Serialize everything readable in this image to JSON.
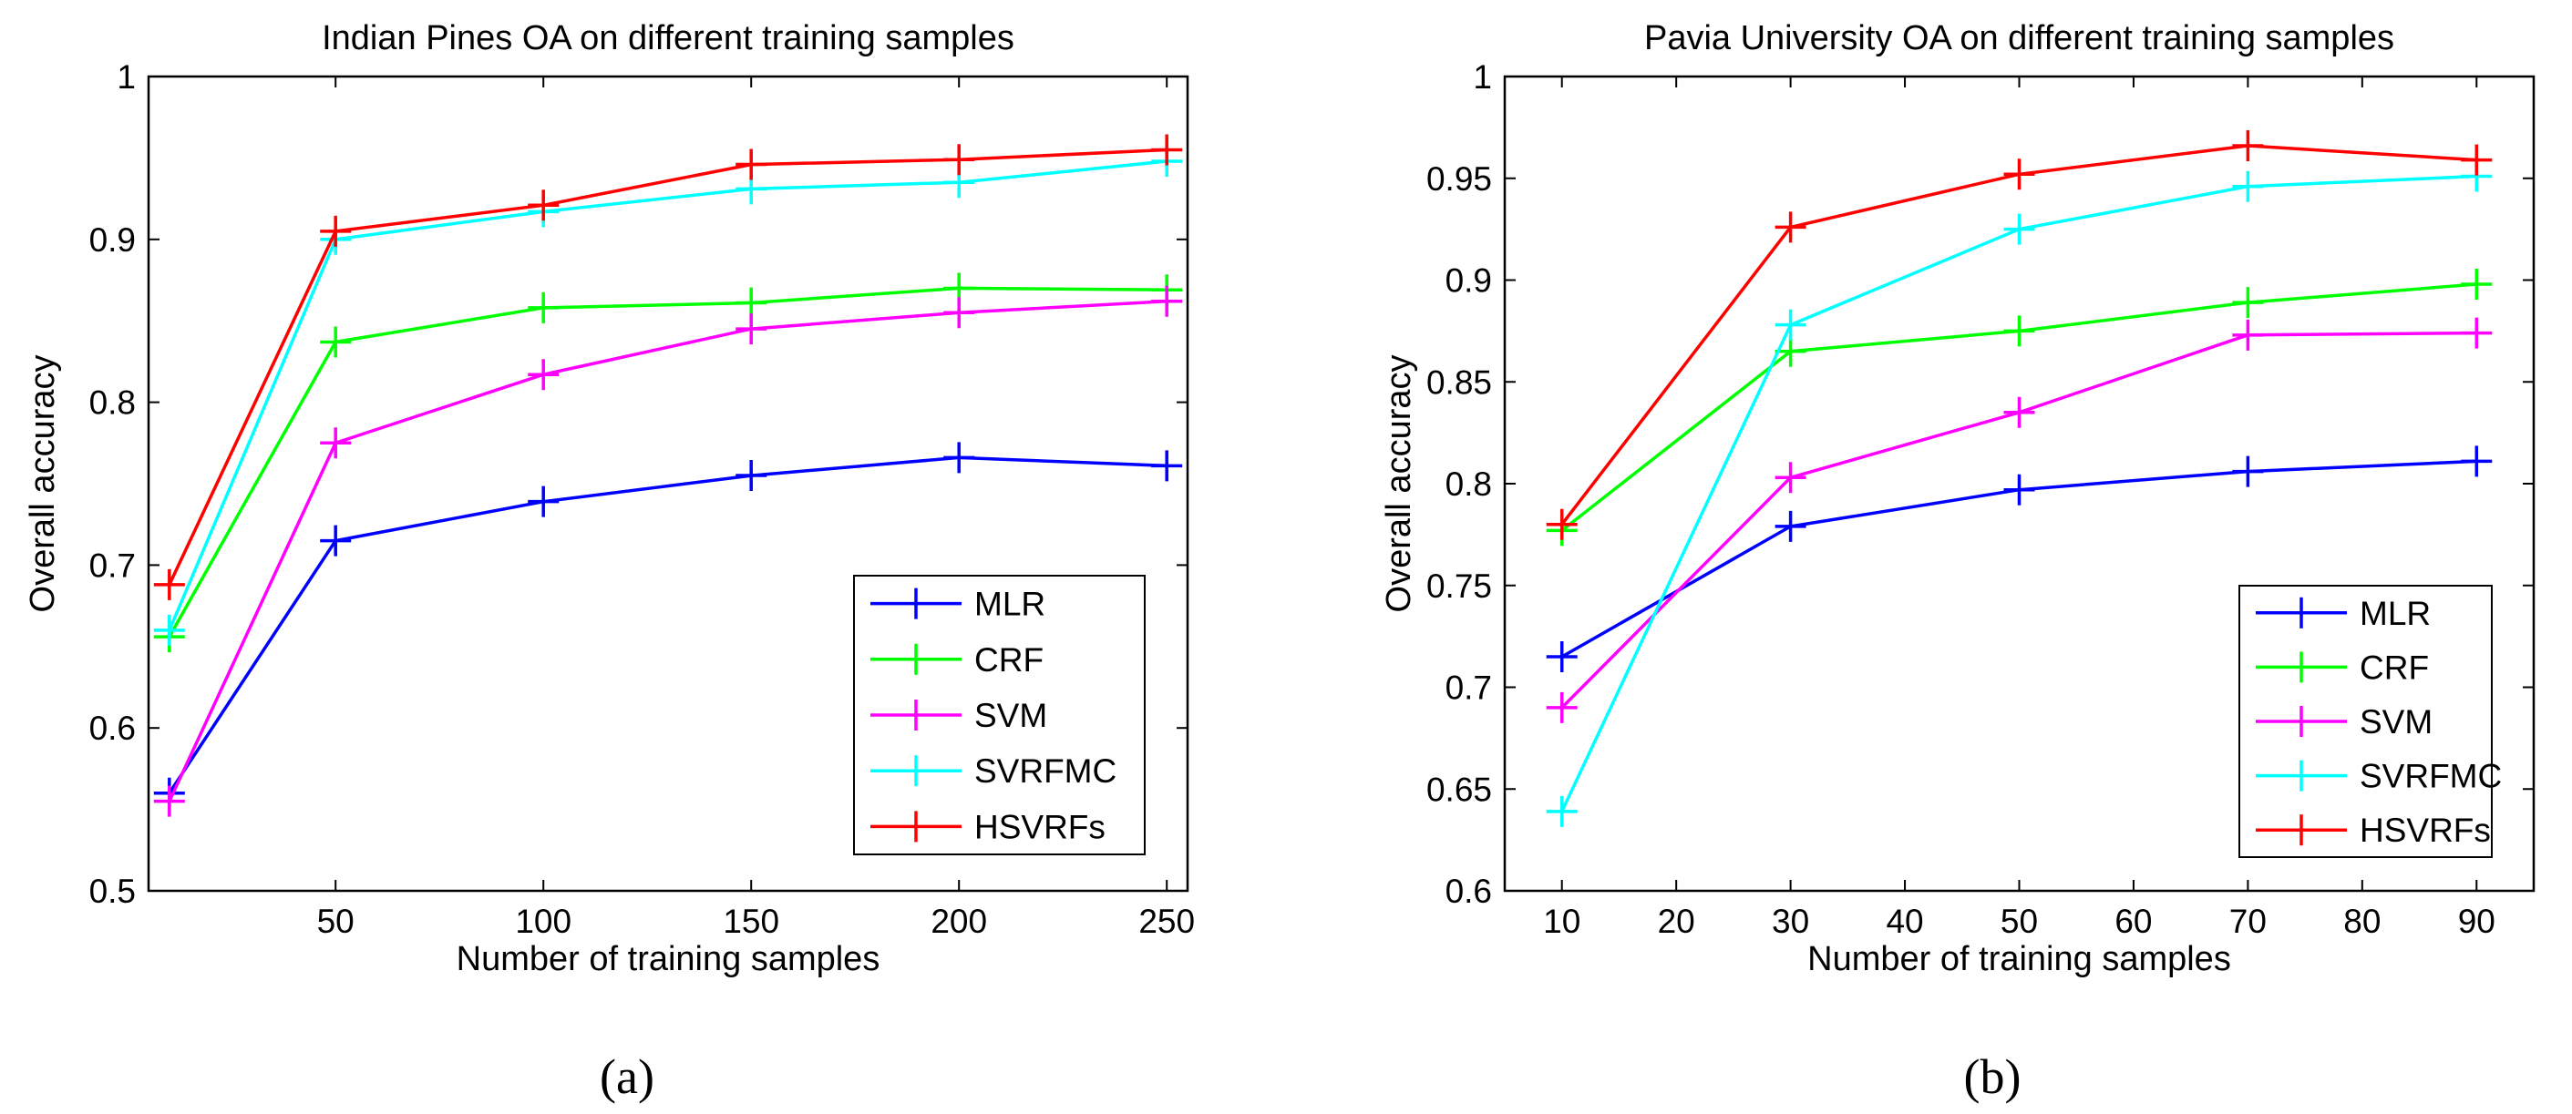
{
  "chart_data": [
    {
      "type": "line",
      "title": "Indian Pines OA on different training samples",
      "xlabel": "Number of training samples",
      "ylabel": "Overall accuracy",
      "caption": "(a)",
      "xlim": [
        5,
        255
      ],
      "ylim": [
        0.5,
        1
      ],
      "xticks": [
        50,
        100,
        150,
        200,
        250
      ],
      "yticks": [
        0.5,
        0.6,
        0.7,
        0.8,
        0.9,
        1
      ],
      "ytick_labels": [
        "0.5",
        "0.6",
        "0.7",
        "0.8",
        "0.9",
        "1"
      ],
      "legend_position": "bottom-right",
      "x": [
        10,
        50,
        100,
        150,
        200,
        250
      ],
      "series": [
        {
          "name": "MLR",
          "color": "#0000ff",
          "values": [
            0.56,
            0.715,
            0.739,
            0.755,
            0.766,
            0.761
          ]
        },
        {
          "name": "CRF",
          "color": "#00ff00",
          "values": [
            0.656,
            0.837,
            0.858,
            0.861,
            0.87,
            0.869
          ]
        },
        {
          "name": "SVM",
          "color": "#ff00ff",
          "values": [
            0.555,
            0.775,
            0.817,
            0.845,
            0.855,
            0.862
          ]
        },
        {
          "name": "SVRFMC",
          "color": "#00ffff",
          "values": [
            0.66,
            0.9,
            0.917,
            0.931,
            0.935,
            0.948
          ]
        },
        {
          "name": "HSVRFs",
          "color": "#ff0000",
          "values": [
            0.688,
            0.905,
            0.921,
            0.946,
            0.949,
            0.955
          ]
        }
      ]
    },
    {
      "type": "line",
      "title": "Pavia University OA on different training samples",
      "xlabel": "Number of training samples",
      "ylabel": "Overall accuracy",
      "caption": "(b)",
      "xlim": [
        5,
        95
      ],
      "ylim": [
        0.6,
        1
      ],
      "xticks": [
        10,
        20,
        30,
        40,
        50,
        60,
        70,
        80,
        90
      ],
      "yticks": [
        0.6,
        0.65,
        0.7,
        0.75,
        0.8,
        0.85,
        0.9,
        0.95,
        1
      ],
      "ytick_labels": [
        "0.6",
        "0.65",
        "0.7",
        "0.75",
        "0.8",
        "0.85",
        "0.9",
        "0.95",
        "1"
      ],
      "legend_position": "bottom-right",
      "x": [
        10,
        30,
        50,
        70,
        90
      ],
      "series": [
        {
          "name": "MLR",
          "color": "#0000ff",
          "values": [
            0.715,
            0.779,
            0.797,
            0.806,
            0.811
          ]
        },
        {
          "name": "CRF",
          "color": "#00ff00",
          "values": [
            0.777,
            0.865,
            0.875,
            0.889,
            0.898
          ]
        },
        {
          "name": "SVM",
          "color": "#ff00ff",
          "values": [
            0.69,
            0.803,
            0.835,
            0.873,
            0.874
          ]
        },
        {
          "name": "SVRFMC",
          "color": "#00ffff",
          "values": [
            0.639,
            0.878,
            0.925,
            0.946,
            0.951
          ]
        },
        {
          "name": "HSVRFs",
          "color": "#ff0000",
          "values": [
            0.78,
            0.926,
            0.952,
            0.966,
            0.959
          ]
        }
      ]
    }
  ]
}
